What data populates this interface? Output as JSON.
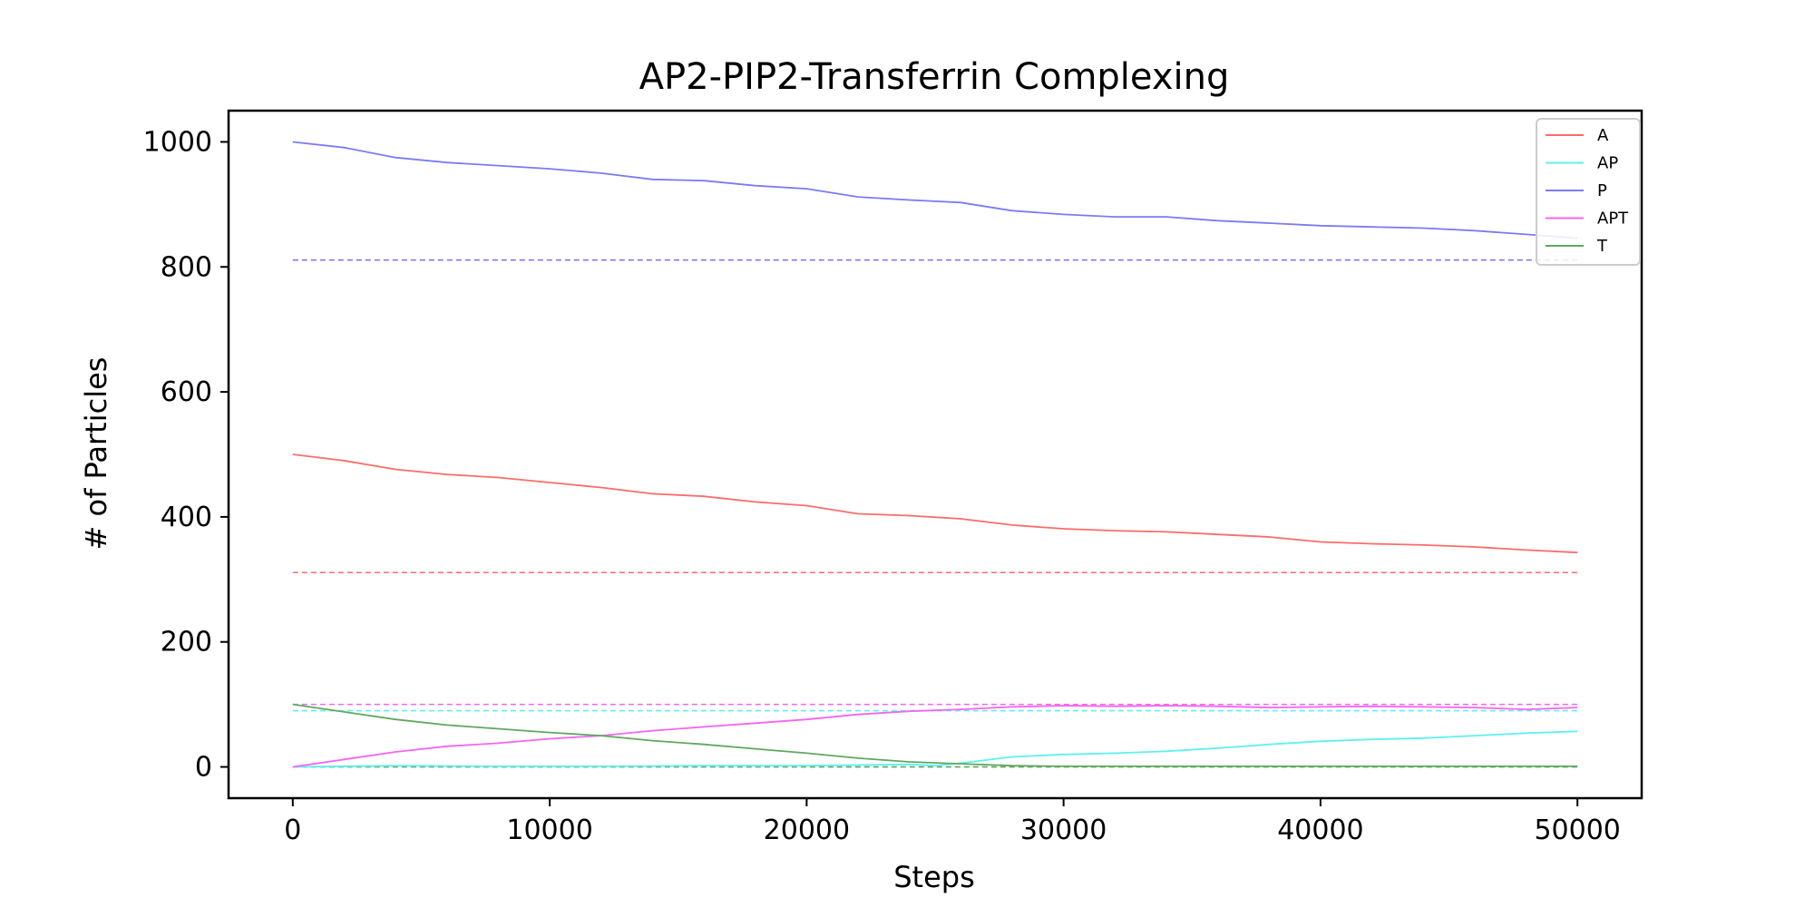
{
  "chart_data": {
    "type": "line",
    "title": "AP2-PIP2-Transferrin Complexing",
    "xlabel": "Steps",
    "ylabel": "# of Particles",
    "xlim": [
      -2500,
      52500
    ],
    "ylim": [
      -50,
      1050
    ],
    "xticks": [
      0,
      10000,
      20000,
      30000,
      40000,
      50000
    ],
    "yticks": [
      0,
      200,
      400,
      600,
      800,
      1000
    ],
    "grid": false,
    "legend_position": "top-right",
    "series": [
      {
        "name": "A",
        "color": "#ff6b6b",
        "x": [
          0,
          2000,
          4000,
          6000,
          8000,
          10000,
          12000,
          14000,
          16000,
          18000,
          20000,
          22000,
          24000,
          26000,
          28000,
          30000,
          32000,
          34000,
          36000,
          38000,
          40000,
          42000,
          44000,
          46000,
          48000,
          50000
        ],
        "values": [
          500,
          490,
          476,
          468,
          463,
          455,
          447,
          437,
          433,
          424,
          418,
          405,
          402,
          397,
          387,
          381,
          378,
          376,
          372,
          368,
          360,
          357,
          355,
          352,
          347,
          343
        ]
      },
      {
        "name": "AP",
        "color": "#5ff0f0",
        "x": [
          0,
          4000,
          8000,
          12000,
          16000,
          20000,
          24000,
          25000,
          26000,
          28000,
          30000,
          32000,
          34000,
          36000,
          38000,
          40000,
          42000,
          44000,
          46000,
          48000,
          50000
        ],
        "values": [
          0,
          2,
          1,
          1,
          2,
          2,
          4,
          2,
          6,
          16,
          20,
          22,
          25,
          30,
          36,
          41,
          44,
          46,
          50,
          54,
          57
        ]
      },
      {
        "name": "P",
        "color": "#7b7bf5",
        "x": [
          0,
          2000,
          4000,
          6000,
          8000,
          10000,
          12000,
          14000,
          16000,
          18000,
          20000,
          22000,
          24000,
          26000,
          28000,
          30000,
          32000,
          34000,
          36000,
          38000,
          40000,
          42000,
          44000,
          46000,
          48000,
          50000
        ],
        "values": [
          1000,
          991,
          975,
          967,
          962,
          957,
          950,
          940,
          938,
          930,
          925,
          912,
          907,
          903,
          890,
          884,
          880,
          880,
          874,
          870,
          866,
          864,
          862,
          858,
          852,
          846
        ]
      },
      {
        "name": "APT",
        "color": "#f564f5",
        "x": [
          0,
          2000,
          4000,
          6000,
          8000,
          10000,
          12000,
          14000,
          16000,
          18000,
          20000,
          22000,
          24000,
          26000,
          28000,
          30000,
          32000,
          34000,
          36000,
          38000,
          40000,
          42000,
          44000,
          46000,
          48000,
          50000
        ],
        "values": [
          0,
          12,
          24,
          33,
          38,
          45,
          50,
          58,
          64,
          70,
          76,
          84,
          89,
          92,
          96,
          98,
          97,
          98,
          97,
          95,
          96,
          97,
          96,
          95,
          92,
          95
        ]
      },
      {
        "name": "T",
        "color": "#5fa85f",
        "x": [
          0,
          2000,
          4000,
          6000,
          8000,
          10000,
          12000,
          14000,
          16000,
          18000,
          20000,
          22000,
          24000,
          26000,
          28000,
          30000,
          35000,
          40000,
          45000,
          50000
        ],
        "values": [
          100,
          88,
          76,
          67,
          61,
          55,
          50,
          42,
          36,
          29,
          22,
          14,
          8,
          5,
          2,
          1,
          1,
          1,
          1,
          1
        ]
      }
    ],
    "reference_lines": [
      {
        "series": "A",
        "color": "#ff6b6b",
        "value": 311
      },
      {
        "series": "AP",
        "color": "#5ff0f0",
        "value": 90
      },
      {
        "series": "P",
        "color": "#7b7bf5",
        "value": 811
      },
      {
        "series": "APT",
        "color": "#f564f5",
        "value": 100
      },
      {
        "series": "T",
        "color": "#5fa85f",
        "value": 0
      }
    ]
  }
}
